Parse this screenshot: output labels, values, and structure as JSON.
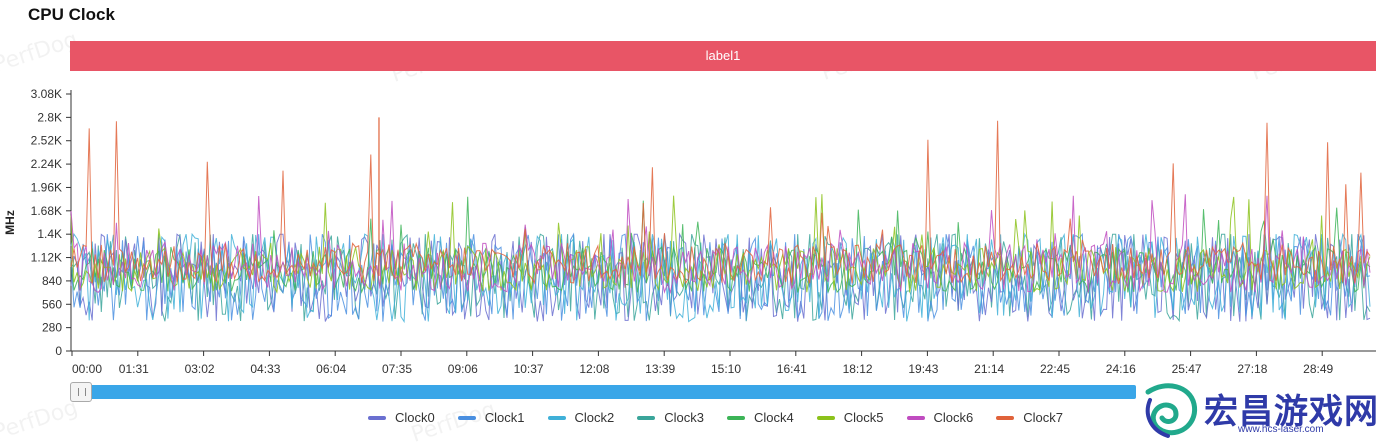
{
  "title": "CPU Clock",
  "label_bar": "label1",
  "watermark": "PerfDog",
  "brand": {
    "name": "宏昌游戏网",
    "url": "www.hcs-laser.com"
  },
  "colors": {
    "label_bar": "#e85566",
    "slider": "#3aa6e8"
  },
  "slider": {
    "start_fraction": 0.0,
    "end_fraction": 0.81
  },
  "chart_data": {
    "type": "line",
    "ylabel": "MHz",
    "y_ticks": [
      "0",
      "280",
      "560",
      "840",
      "1.12K",
      "1.4K",
      "1.68K",
      "1.96K",
      "2.24K",
      "2.52K",
      "2.8K",
      "3.08K"
    ],
    "ylim": [
      0,
      3080
    ],
    "x_ticks": [
      "00:00",
      "01:31",
      "03:02",
      "04:33",
      "06:04",
      "07:35",
      "09:06",
      "10:37",
      "12:08",
      "13:39",
      "15:10",
      "16:41",
      "18:12",
      "19:43",
      "21:14",
      "22:45",
      "24:16",
      "25:47",
      "27:18",
      "28:49"
    ],
    "grid": false,
    "legend_position": "bottom",
    "series": [
      {
        "name": "Clock0",
        "color": "#6a6fd0",
        "low": 350,
        "high": 1400,
        "spike": 1400
      },
      {
        "name": "Clock1",
        "color": "#4a8fe0",
        "low": 350,
        "high": 1400,
        "spike": 1400
      },
      {
        "name": "Clock2",
        "color": "#3fb0d8",
        "low": 350,
        "high": 1400,
        "spike": 1400
      },
      {
        "name": "Clock3",
        "color": "#3aa59a",
        "low": 350,
        "high": 1400,
        "spike": 1400
      },
      {
        "name": "Clock4",
        "color": "#3cb457",
        "low": 700,
        "high": 1250,
        "spike": 1880
      },
      {
        "name": "Clock5",
        "color": "#8cc21b",
        "low": 700,
        "high": 1250,
        "spike": 1880
      },
      {
        "name": "Clock6",
        "color": "#c04cc0",
        "low": 700,
        "high": 1300,
        "spike": 1900
      },
      {
        "name": "Clock7",
        "color": "#e0623a",
        "low": 800,
        "high": 1300,
        "spike": 2800
      }
    ]
  }
}
